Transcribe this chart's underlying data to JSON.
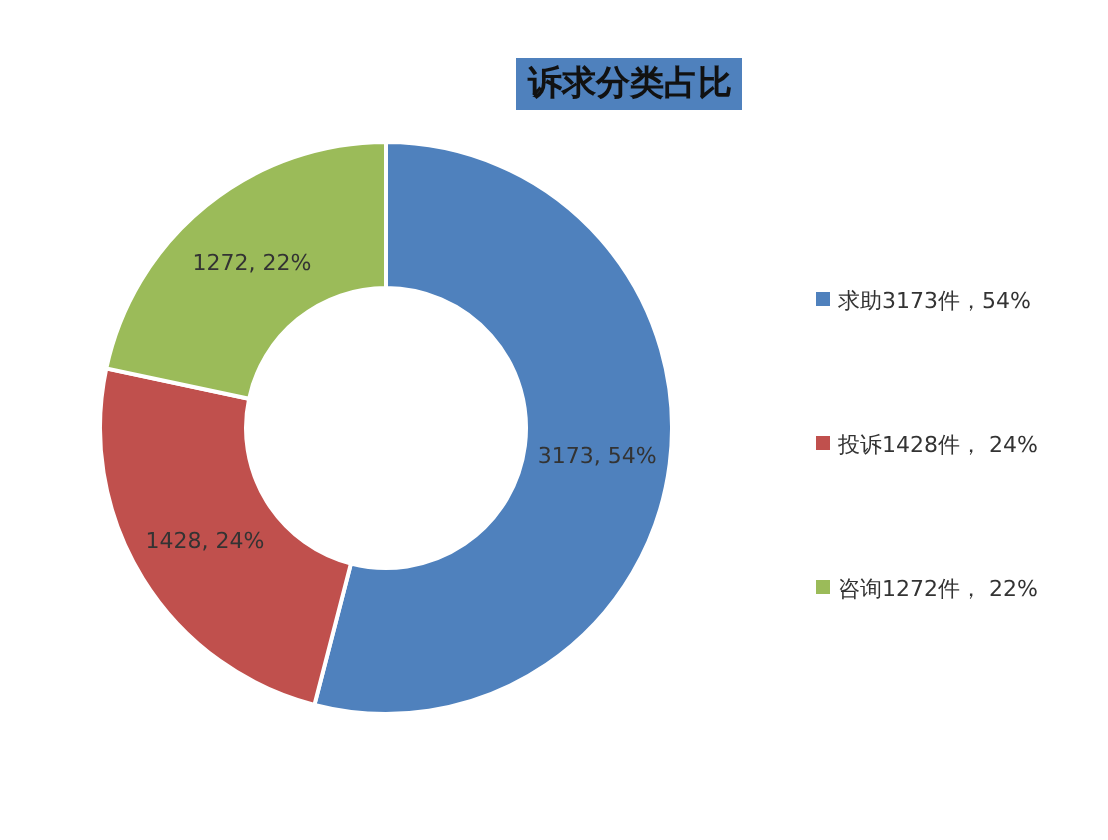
{
  "chart_data": {
    "type": "donut",
    "title": "诉求分类占比",
    "categories": [
      "求助3173件，54%",
      "投诉1428件， 24%",
      "咨询1272件， 22%"
    ],
    "values": [
      3173,
      1428,
      1272
    ],
    "colors": [
      "#4f81bd",
      "#c0504d",
      "#9bbb59"
    ],
    "value_labels": [
      "3173, 54%",
      "1428, 24%",
      "1272, 22%"
    ],
    "legend": "right"
  }
}
